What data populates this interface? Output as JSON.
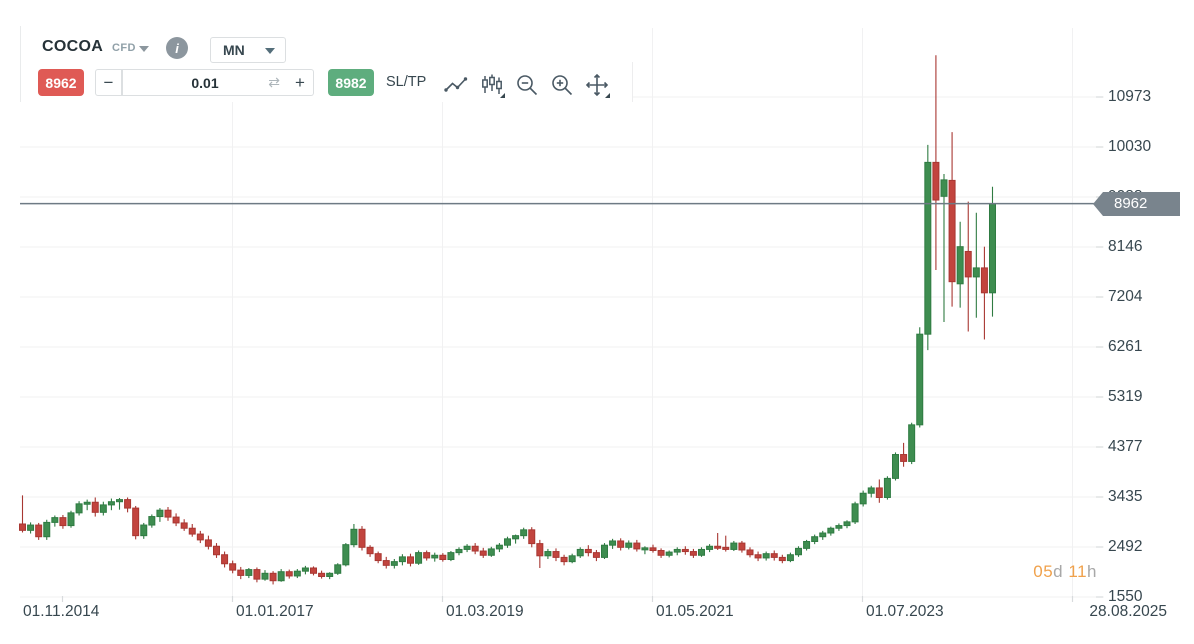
{
  "header": {
    "symbol": "COCOA",
    "instrument_type": "CFD",
    "timeframe": "MN"
  },
  "trade_panel": {
    "sell_price": "8962",
    "buy_price": "8982",
    "volume": "0.01",
    "minus_label": "−",
    "plus_label": "+",
    "refresh_icon": "⇄",
    "sltp_label": "SL/TP",
    "info_icon": "i",
    "tool_icons": [
      "line-chart-icon",
      "candlestick-style-icon",
      "zoom-out-icon",
      "zoom-in-icon",
      "pan-crosshair-icon"
    ]
  },
  "price_axis": {
    "labels": [
      "10973",
      "10030",
      "9088",
      "8146",
      "7204",
      "6261",
      "5319",
      "4377",
      "3435",
      "2492",
      "1550"
    ],
    "current_price": "8962"
  },
  "time_axis": {
    "labels": [
      "01.11.2014",
      "01.01.2017",
      "01.03.2019",
      "01.05.2021",
      "01.07.2023",
      "28.08.2025"
    ]
  },
  "countdown": {
    "days": "05",
    "days_unit": "d",
    "hours": "11",
    "hours_unit": "h"
  },
  "colors": {
    "bull": "#3e8d50",
    "bull_border": "#2f7b42",
    "bear": "#c2443e",
    "bear_border": "#a83732",
    "grid": "#f1f1f2",
    "tick": "#d8dbdd",
    "price_line": "#6e7a84",
    "price_tag_bg": "#79848d",
    "sell_red": "#df5a55",
    "buy_green": "#5ead7e",
    "countdown_accent": "#f0a14b"
  },
  "chart_data": {
    "type": "candlestick",
    "title": "COCOA CFD monthly candlestick chart",
    "timeframe": "MN (monthly)",
    "start_month": "2014-11",
    "interval": "1 month",
    "x_labels": [
      "01.11.2014",
      "01.01.2017",
      "01.03.2019",
      "01.05.2021",
      "01.07.2023",
      "28.08.2025"
    ],
    "y_ticks": [
      10973,
      10030,
      9088,
      8146,
      7204,
      6261,
      5319,
      4377,
      3435,
      2492,
      1550
    ],
    "ylim": [
      1550,
      11760
    ],
    "grid": true,
    "current_price": 8962,
    "candles_ohlc": [
      [
        2920,
        3460,
        2760,
        2800
      ],
      [
        2800,
        2950,
        2740,
        2900
      ],
      [
        2900,
        2940,
        2620,
        2680
      ],
      [
        2680,
        3000,
        2620,
        2950
      ],
      [
        2950,
        3080,
        2870,
        3040
      ],
      [
        3040,
        3090,
        2830,
        2890
      ],
      [
        2890,
        3170,
        2850,
        3130
      ],
      [
        3130,
        3350,
        3080,
        3300
      ],
      [
        3300,
        3380,
        3180,
        3330
      ],
      [
        3330,
        3420,
        3060,
        3140
      ],
      [
        3140,
        3340,
        3080,
        3280
      ],
      [
        3280,
        3400,
        3180,
        3340
      ],
      [
        3340,
        3410,
        3190,
        3380
      ],
      [
        3380,
        3420,
        3140,
        3220
      ],
      [
        3220,
        3260,
        2630,
        2700
      ],
      [
        2700,
        2940,
        2640,
        2900
      ],
      [
        2900,
        3100,
        2850,
        3060
      ],
      [
        3060,
        3220,
        2960,
        3180
      ],
      [
        3180,
        3240,
        2980,
        3050
      ],
      [
        3050,
        3120,
        2880,
        2940
      ],
      [
        2940,
        3010,
        2790,
        2840
      ],
      [
        2840,
        2920,
        2680,
        2730
      ],
      [
        2730,
        2790,
        2560,
        2620
      ],
      [
        2620,
        2700,
        2440,
        2500
      ],
      [
        2500,
        2560,
        2280,
        2340
      ],
      [
        2340,
        2400,
        2100,
        2170
      ],
      [
        2170,
        2230,
        1990,
        2050
      ],
      [
        2050,
        2110,
        1880,
        1950
      ],
      [
        1950,
        2090,
        1900,
        2060
      ],
      [
        2060,
        2100,
        1820,
        1880
      ],
      [
        1880,
        2050,
        1850,
        1990
      ],
      [
        1990,
        2030,
        1780,
        1850
      ],
      [
        1850,
        2070,
        1830,
        2020
      ],
      [
        2020,
        2060,
        1890,
        1940
      ],
      [
        1940,
        2070,
        1900,
        2030
      ],
      [
        2030,
        2130,
        1970,
        2090
      ],
      [
        2090,
        2120,
        1950,
        1990
      ],
      [
        1990,
        2040,
        1890,
        1930
      ],
      [
        1930,
        2010,
        1880,
        1990
      ],
      [
        1990,
        2180,
        1960,
        2150
      ],
      [
        2150,
        2560,
        2120,
        2530
      ],
      [
        2530,
        2920,
        2480,
        2820
      ],
      [
        2820,
        2880,
        2420,
        2480
      ],
      [
        2480,
        2520,
        2300,
        2360
      ],
      [
        2360,
        2400,
        2180,
        2230
      ],
      [
        2230,
        2300,
        2080,
        2140
      ],
      [
        2140,
        2260,
        2080,
        2210
      ],
      [
        2210,
        2350,
        2140,
        2300
      ],
      [
        2300,
        2360,
        2120,
        2180
      ],
      [
        2180,
        2420,
        2150,
        2380
      ],
      [
        2380,
        2420,
        2230,
        2280
      ],
      [
        2280,
        2380,
        2210,
        2330
      ],
      [
        2330,
        2370,
        2210,
        2250
      ],
      [
        2250,
        2410,
        2220,
        2380
      ],
      [
        2380,
        2480,
        2330,
        2440
      ],
      [
        2440,
        2540,
        2390,
        2500
      ],
      [
        2500,
        2560,
        2350,
        2410
      ],
      [
        2410,
        2470,
        2280,
        2330
      ],
      [
        2330,
        2490,
        2300,
        2450
      ],
      [
        2450,
        2560,
        2390,
        2520
      ],
      [
        2520,
        2680,
        2470,
        2640
      ],
      [
        2640,
        2720,
        2550,
        2700
      ],
      [
        2700,
        2850,
        2640,
        2810
      ],
      [
        2810,
        2860,
        2480,
        2550
      ],
      [
        2550,
        2620,
        2090,
        2320
      ],
      [
        2320,
        2450,
        2260,
        2400
      ],
      [
        2400,
        2460,
        2220,
        2290
      ],
      [
        2290,
        2340,
        2140,
        2210
      ],
      [
        2210,
        2360,
        2180,
        2320
      ],
      [
        2320,
        2480,
        2280,
        2440
      ],
      [
        2440,
        2520,
        2310,
        2380
      ],
      [
        2380,
        2430,
        2220,
        2290
      ],
      [
        2290,
        2560,
        2260,
        2520
      ],
      [
        2520,
        2640,
        2450,
        2600
      ],
      [
        2600,
        2650,
        2420,
        2480
      ],
      [
        2480,
        2610,
        2440,
        2560
      ],
      [
        2560,
        2620,
        2400,
        2450
      ],
      [
        2450,
        2500,
        2350,
        2470
      ],
      [
        2470,
        2530,
        2380,
        2420
      ],
      [
        2420,
        2460,
        2280,
        2330
      ],
      [
        2330,
        2420,
        2290,
        2390
      ],
      [
        2390,
        2480,
        2330,
        2440
      ],
      [
        2440,
        2500,
        2340,
        2400
      ],
      [
        2400,
        2450,
        2280,
        2330
      ],
      [
        2330,
        2480,
        2300,
        2440
      ],
      [
        2440,
        2540,
        2390,
        2500
      ],
      [
        2500,
        2750,
        2430,
        2480
      ],
      [
        2480,
        2700,
        2400,
        2440
      ],
      [
        2440,
        2600,
        2410,
        2560
      ],
      [
        2560,
        2600,
        2380,
        2430
      ],
      [
        2430,
        2480,
        2290,
        2340
      ],
      [
        2340,
        2400,
        2220,
        2280
      ],
      [
        2280,
        2400,
        2230,
        2360
      ],
      [
        2360,
        2420,
        2230,
        2290
      ],
      [
        2290,
        2340,
        2180,
        2230
      ],
      [
        2230,
        2380,
        2200,
        2340
      ],
      [
        2340,
        2500,
        2300,
        2460
      ],
      [
        2460,
        2620,
        2420,
        2590
      ],
      [
        2590,
        2720,
        2540,
        2680
      ],
      [
        2680,
        2790,
        2620,
        2750
      ],
      [
        2750,
        2870,
        2700,
        2840
      ],
      [
        2840,
        2930,
        2790,
        2890
      ],
      [
        2890,
        2990,
        2840,
        2960
      ],
      [
        2960,
        3340,
        2920,
        3300
      ],
      [
        3300,
        3550,
        3250,
        3500
      ],
      [
        3500,
        3640,
        3420,
        3600
      ],
      [
        3600,
        3760,
        3320,
        3420
      ],
      [
        3420,
        3820,
        3380,
        3780
      ],
      [
        3780,
        4270,
        3740,
        4230
      ],
      [
        4230,
        4450,
        4000,
        4100
      ],
      [
        4100,
        4830,
        4050,
        4790
      ],
      [
        4790,
        6630,
        4740,
        6500
      ],
      [
        6500,
        10070,
        6200,
        9740
      ],
      [
        9740,
        11760,
        7710,
        9030
      ],
      [
        9100,
        9520,
        6730,
        9410
      ],
      [
        9400,
        10310,
        7020,
        7490
      ],
      [
        7450,
        8620,
        7000,
        8150
      ],
      [
        8060,
        9000,
        6550,
        7580
      ],
      [
        7580,
        8790,
        6810,
        7750
      ],
      [
        7750,
        8150,
        6400,
        7280
      ],
      [
        7280,
        9280,
        6830,
        8962
      ]
    ]
  }
}
